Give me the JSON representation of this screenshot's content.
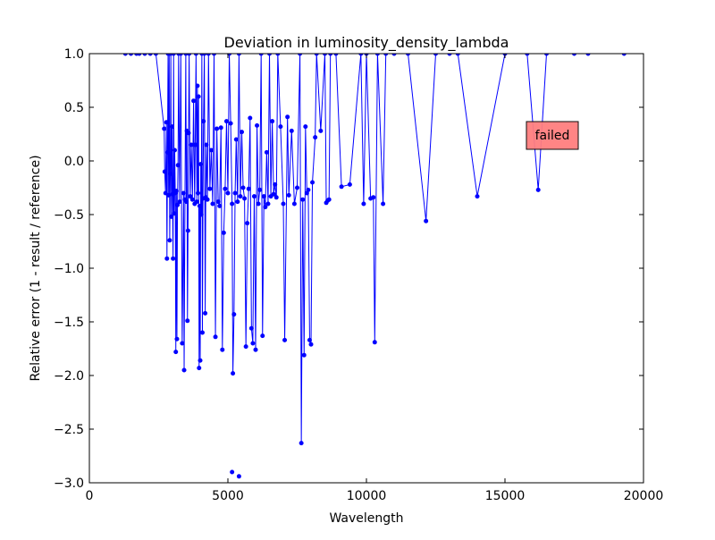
{
  "chart_data": {
    "type": "line",
    "title": "Deviation in luminosity_density_lambda",
    "xlabel": "Wavelength",
    "ylabel": "Relative error (1 - result / reference)",
    "xlim": [
      0,
      20000
    ],
    "ylim": [
      -3.0,
      1.0
    ],
    "x_ticks": [
      0,
      5000,
      10000,
      15000,
      20000
    ],
    "x_tick_labels": [
      "0",
      "5000",
      "10000",
      "15000",
      "20000"
    ],
    "y_ticks": [
      1.0,
      0.5,
      0.0,
      -0.5,
      -1.0,
      -1.5,
      -2.0,
      -2.5,
      -3.0
    ],
    "y_tick_labels": [
      "1.0",
      "0.5",
      "0.0",
      "−0.5",
      "−1.0",
      "−1.5",
      "−2.0",
      "−2.5",
      "−3.0"
    ],
    "grid": false,
    "legend": "none",
    "series": [
      {
        "color": "#0000ff",
        "marker": "circle",
        "points": [
          [
            1300,
            1.0
          ],
          [
            1500,
            1.0
          ],
          [
            1700,
            1.0
          ],
          [
            1800,
            1.0
          ],
          [
            2000,
            1.0
          ],
          [
            2200,
            1.0
          ],
          [
            2400,
            1.0
          ],
          [
            2700,
            0.3
          ],
          [
            2720,
            -0.1
          ],
          [
            2750,
            -0.3
          ],
          [
            2780,
            0.36
          ],
          [
            2800,
            -0.91
          ],
          [
            2820,
            0.08
          ],
          [
            2840,
            1.0
          ],
          [
            2860,
            -0.32
          ],
          [
            2880,
            1.0
          ],
          [
            2900,
            -0.74
          ],
          [
            2920,
            -0.12
          ],
          [
            2940,
            1.0
          ],
          [
            2960,
            -0.52
          ],
          [
            2980,
            0.32
          ],
          [
            3000,
            -0.31
          ],
          [
            3020,
            -0.91
          ],
          [
            3040,
            1.0
          ],
          [
            3060,
            -0.49
          ],
          [
            3080,
            0.1
          ],
          [
            3100,
            -0.3
          ],
          [
            3120,
            -1.78
          ],
          [
            3140,
            -0.28
          ],
          [
            3160,
            -1.66
          ],
          [
            3180,
            -0.41
          ],
          [
            3200,
            -0.04
          ],
          [
            3220,
            1.0
          ],
          [
            3260,
            -0.38
          ],
          [
            3300,
            1.0
          ],
          [
            3350,
            -1.7
          ],
          [
            3400,
            -0.3
          ],
          [
            3420,
            -1.95
          ],
          [
            3450,
            -0.36
          ],
          [
            3480,
            1.0
          ],
          [
            3500,
            -0.38
          ],
          [
            3520,
            0.28
          ],
          [
            3540,
            -1.49
          ],
          [
            3560,
            -0.65
          ],
          [
            3580,
            0.26
          ],
          [
            3600,
            1.0
          ],
          [
            3640,
            -0.33
          ],
          [
            3680,
            0.15
          ],
          [
            3720,
            -0.36
          ],
          [
            3760,
            0.56
          ],
          [
            3800,
            -0.4
          ],
          [
            3820,
            0.15
          ],
          [
            3850,
            1.0
          ],
          [
            3880,
            -0.38
          ],
          [
            3900,
            0.7
          ],
          [
            3920,
            -0.3
          ],
          [
            3940,
            0.6
          ],
          [
            3960,
            -1.93
          ],
          [
            3980,
            -0.42
          ],
          [
            4000,
            -1.86
          ],
          [
            4020,
            -0.03
          ],
          [
            4040,
            -0.5
          ],
          [
            4060,
            1.0
          ],
          [
            4080,
            -1.6
          ],
          [
            4100,
            -0.35
          ],
          [
            4120,
            0.37
          ],
          [
            4150,
            1.0
          ],
          [
            4180,
            -1.42
          ],
          [
            4200,
            -0.34
          ],
          [
            4220,
            0.15
          ],
          [
            4260,
            -0.36
          ],
          [
            4300,
            1.0
          ],
          [
            4350,
            -0.26
          ],
          [
            4400,
            0.1
          ],
          [
            4450,
            -0.4
          ],
          [
            4500,
            1.0
          ],
          [
            4550,
            -1.64
          ],
          [
            4600,
            0.3
          ],
          [
            4650,
            -0.38
          ],
          [
            4700,
            -0.42
          ],
          [
            4750,
            0.31
          ],
          [
            4800,
            -1.76
          ],
          [
            4850,
            -0.67
          ],
          [
            4900,
            -0.26
          ],
          [
            4950,
            0.37
          ],
          [
            5000,
            -0.3
          ],
          [
            5050,
            1.0
          ],
          [
            5100,
            0.35
          ],
          [
            5150,
            -0.4
          ],
          [
            5180,
            -1.98
          ],
          [
            5220,
            -1.43
          ],
          [
            5260,
            -0.3
          ],
          [
            5300,
            0.2
          ],
          [
            5350,
            -0.38
          ],
          [
            5400,
            1.0
          ],
          [
            5450,
            -0.33
          ],
          [
            5500,
            0.27
          ],
          [
            5550,
            -0.25
          ],
          [
            5600,
            -0.35
          ],
          [
            5650,
            -1.73
          ],
          [
            5700,
            -0.58
          ],
          [
            5750,
            -0.26
          ],
          [
            5800,
            0.4
          ],
          [
            5850,
            -1.56
          ],
          [
            5900,
            -1.7
          ],
          [
            5950,
            -0.33
          ],
          [
            6000,
            -1.76
          ],
          [
            6050,
            0.33
          ],
          [
            6100,
            -0.4
          ],
          [
            6150,
            -0.27
          ],
          [
            6200,
            1.0
          ],
          [
            6250,
            -1.63
          ],
          [
            6300,
            -0.33
          ],
          [
            6350,
            -0.43
          ],
          [
            6400,
            0.08
          ],
          [
            6450,
            -0.4
          ],
          [
            6500,
            1.0
          ],
          [
            6550,
            -0.33
          ],
          [
            6600,
            0.37
          ],
          [
            6650,
            -0.31
          ],
          [
            6700,
            -0.22
          ],
          [
            6750,
            -0.34
          ],
          [
            6800,
            1.0
          ],
          [
            6900,
            0.32
          ],
          [
            7000,
            -0.4
          ],
          [
            7050,
            -1.67
          ],
          [
            7150,
            0.41
          ],
          [
            7200,
            -0.32
          ],
          [
            7300,
            0.28
          ],
          [
            7400,
            -0.4
          ],
          [
            7500,
            -0.25
          ],
          [
            7600,
            1.0
          ],
          [
            7650,
            -2.63
          ],
          [
            7700,
            -0.36
          ],
          [
            7750,
            -1.81
          ],
          [
            7800,
            0.32
          ],
          [
            7850,
            -0.3
          ],
          [
            7900,
            -0.27
          ],
          [
            7950,
            -1.67
          ],
          [
            8000,
            -1.71
          ],
          [
            8050,
            -0.2
          ],
          [
            8150,
            0.22
          ],
          [
            8200,
            1.0
          ],
          [
            8350,
            0.28
          ],
          [
            8500,
            1.0
          ],
          [
            8550,
            -0.39
          ],
          [
            8600,
            -0.37
          ],
          [
            8650,
            -0.36
          ],
          [
            8700,
            1.0
          ],
          [
            8900,
            1.0
          ],
          [
            9100,
            -0.24
          ],
          [
            9400,
            -0.22
          ],
          [
            9800,
            1.0
          ],
          [
            9900,
            -0.4
          ],
          [
            10000,
            1.0
          ],
          [
            10150,
            -0.35
          ],
          [
            10250,
            -0.34
          ],
          [
            10300,
            -1.69
          ],
          [
            10400,
            1.0
          ],
          [
            10600,
            -0.4
          ],
          [
            10700,
            1.0
          ],
          [
            11000,
            1.0
          ],
          [
            11500,
            1.0
          ],
          [
            12150,
            -0.56
          ],
          [
            12500,
            1.0
          ],
          [
            13000,
            1.0
          ],
          [
            13300,
            1.0
          ],
          [
            14000,
            -0.33
          ],
          [
            15000,
            1.0
          ],
          [
            15800,
            1.0
          ],
          [
            16200,
            -0.27
          ],
          [
            16500,
            1.0
          ],
          [
            17500,
            1.0
          ],
          [
            18000,
            1.0
          ],
          [
            19300,
            1.0
          ]
        ]
      },
      {
        "color": "#0000ff",
        "marker": "circle",
        "points": [
          [
            5150,
            -2.9
          ],
          [
            5400,
            -2.94
          ]
        ]
      }
    ],
    "annotations": [
      {
        "text": "failed",
        "style": "box",
        "background": "#ff7f7f",
        "x": 16300,
        "y": 0.24
      }
    ]
  }
}
